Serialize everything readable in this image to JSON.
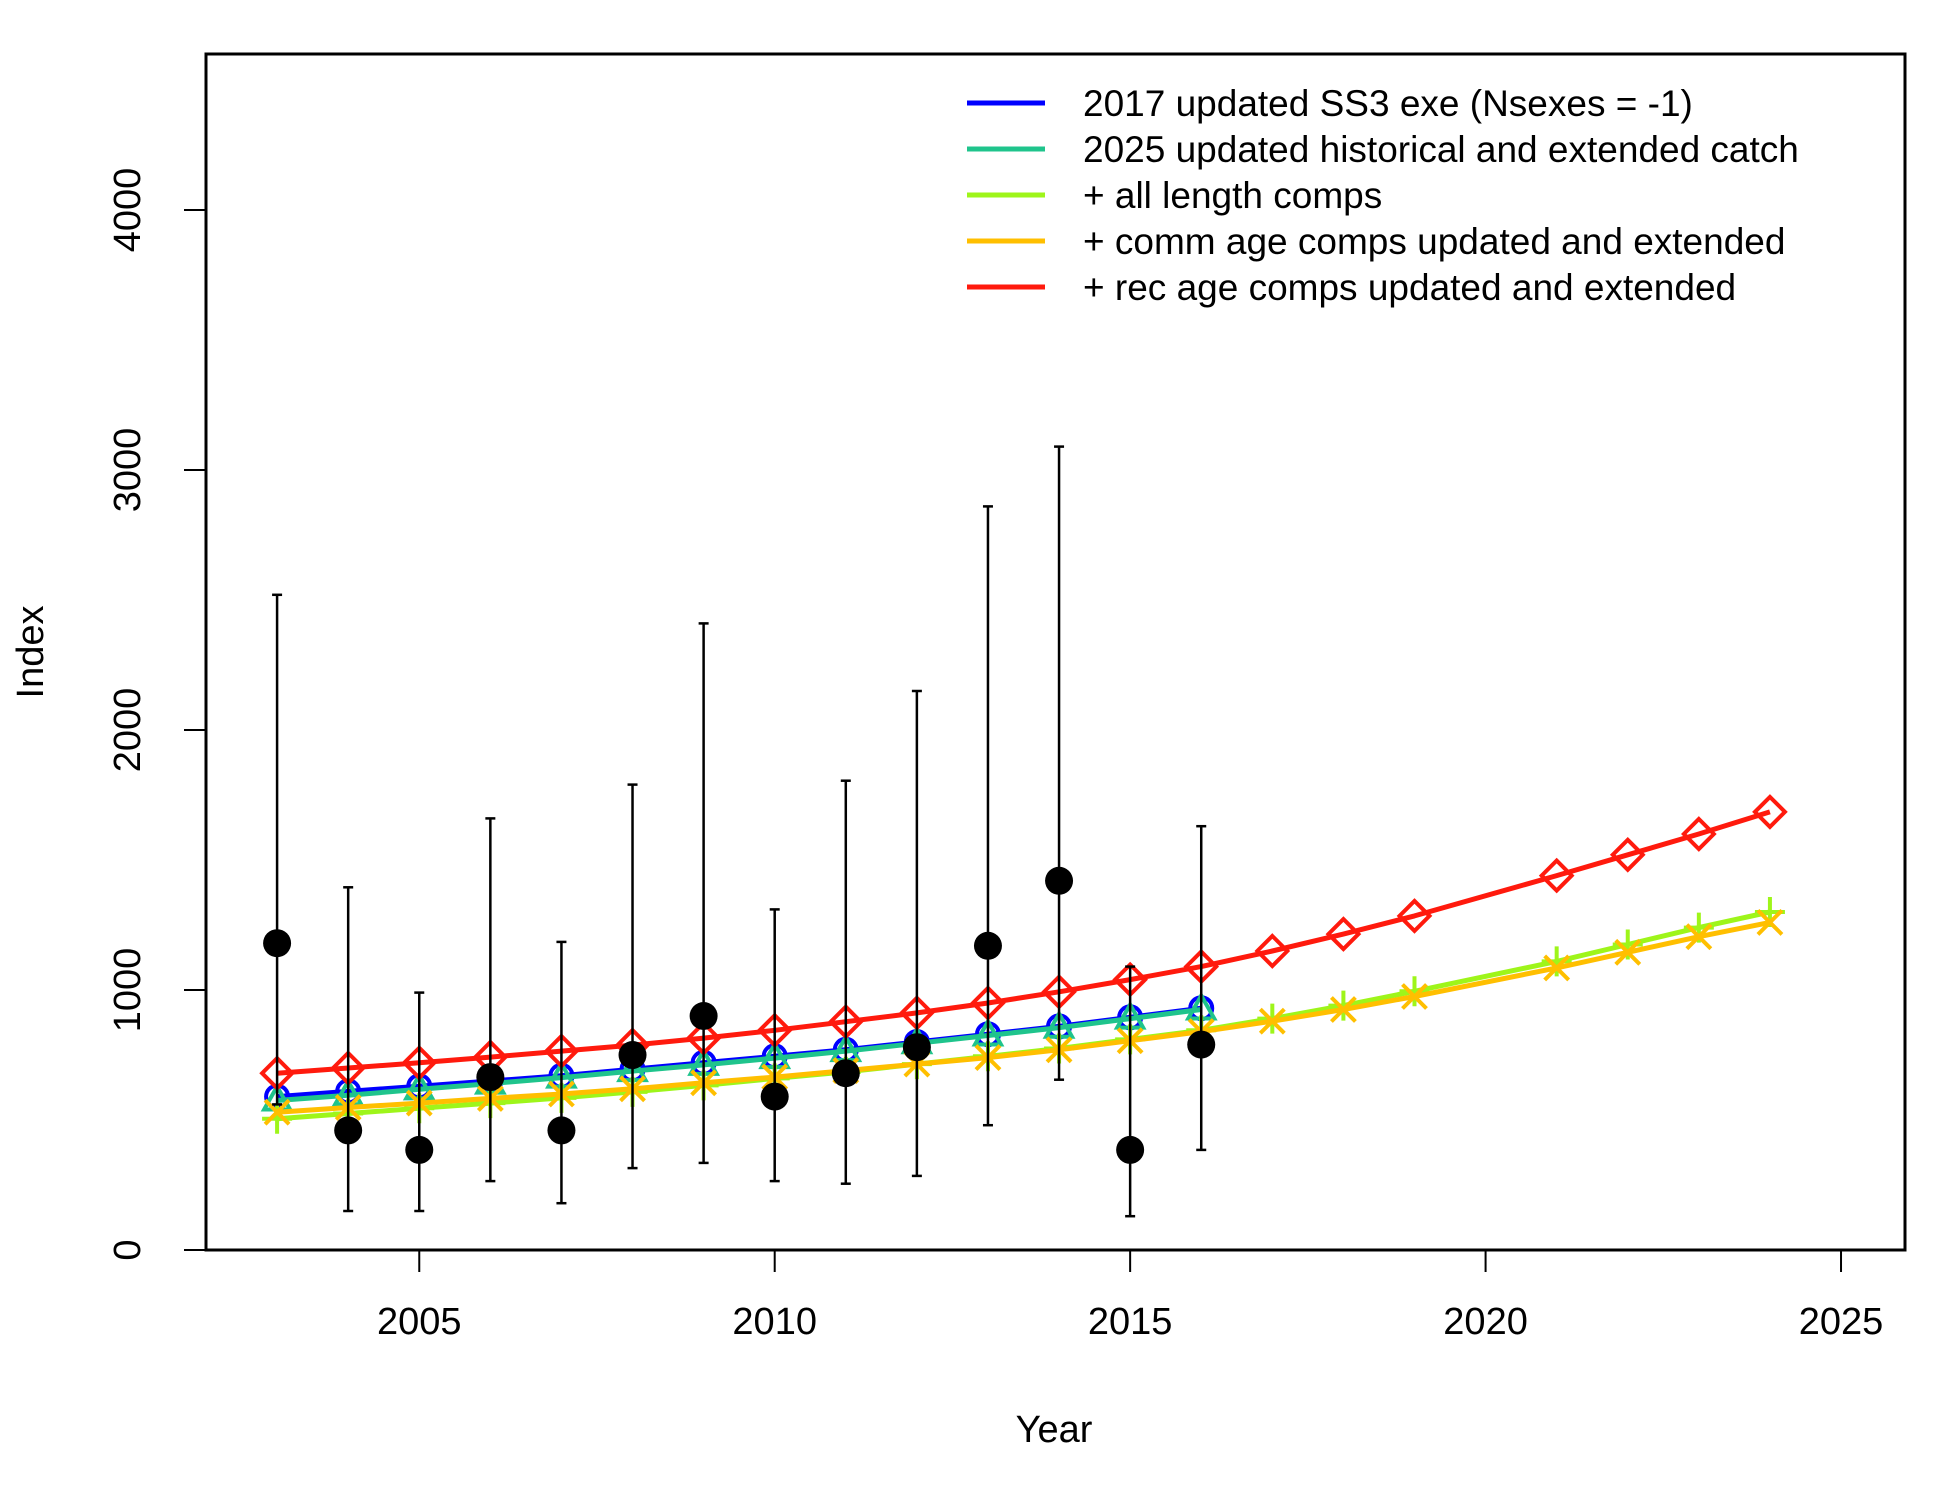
{
  "chart_data": {
    "type": "line",
    "title": "",
    "xlabel": "Year",
    "ylabel": "Index",
    "xlim": [
      2002,
      2025.9
    ],
    "ylim": [
      0,
      4600
    ],
    "x_ticks": [
      2005,
      2010,
      2015,
      2020,
      2025
    ],
    "y_ticks": [
      0,
      1000,
      2000,
      3000,
      4000
    ],
    "grid": false,
    "legend": "top-right",
    "observed": {
      "x": [
        2003,
        2004,
        2005,
        2006,
        2007,
        2008,
        2009,
        2010,
        2011,
        2012,
        2013,
        2014,
        2015,
        2016
      ],
      "y": [
        1180,
        460,
        385,
        665,
        460,
        750,
        900,
        590,
        680,
        780,
        1170,
        1420,
        385,
        790
      ],
      "lower": [
        560,
        150,
        150,
        265,
        180,
        315,
        335,
        265,
        255,
        285,
        480,
        655,
        130,
        385
      ],
      "upper": [
        2520,
        1395,
        990,
        1660,
        1185,
        1790,
        2410,
        1310,
        1805,
        2150,
        2860,
        3090,
        1090,
        1630
      ]
    },
    "series": [
      {
        "name": "2017 updated SS3 exe (Nsexes = -1)",
        "color": "#0000ff",
        "marker": "circle",
        "x": [
          2003,
          2004,
          2005,
          2006,
          2007,
          2008,
          2009,
          2010,
          2011,
          2012,
          2013,
          2014,
          2015,
          2016
        ],
        "y": [
          590,
          610,
          630,
          650,
          670,
          695,
          720,
          745,
          770,
          800,
          830,
          860,
          895,
          930
        ]
      },
      {
        "name": "2025 updated historical and extended catch",
        "color": "#1fc48c",
        "marker": "triangle",
        "x": [
          2003,
          2004,
          2005,
          2006,
          2007,
          2008,
          2009,
          2010,
          2011,
          2012,
          2013,
          2014,
          2015,
          2016
        ],
        "y": [
          575,
          595,
          618,
          640,
          663,
          688,
          712,
          738,
          765,
          795,
          825,
          855,
          890,
          925
        ]
      },
      {
        "name": "+ all length comps",
        "color": "#9ef51a",
        "marker": "plus",
        "x": [
          2003,
          2004,
          2005,
          2006,
          2007,
          2008,
          2009,
          2010,
          2011,
          2012,
          2013,
          2014,
          2015,
          2016,
          2017,
          2018,
          2019,
          2021,
          2022,
          2023,
          2024
        ],
        "y": [
          505,
          525,
          545,
          565,
          585,
          608,
          633,
          660,
          685,
          715,
          745,
          775,
          810,
          845,
          890,
          940,
          995,
          1110,
          1175,
          1240,
          1300
        ]
      },
      {
        "name": "+ comm age comps updated and extended",
        "color": "#ffbf00",
        "marker": "x",
        "x": [
          2003,
          2004,
          2005,
          2006,
          2007,
          2008,
          2009,
          2010,
          2011,
          2012,
          2013,
          2014,
          2015,
          2016,
          2017,
          2018,
          2019,
          2021,
          2022,
          2023,
          2024
        ],
        "y": [
          530,
          548,
          565,
          583,
          600,
          620,
          643,
          665,
          690,
          715,
          740,
          770,
          805,
          840,
          880,
          925,
          975,
          1085,
          1145,
          1205,
          1260
        ]
      },
      {
        "name": "+ rec age comps updated and extended",
        "color": "#ff1a0d",
        "marker": "diamond",
        "x": [
          2003,
          2004,
          2005,
          2006,
          2007,
          2008,
          2009,
          2010,
          2011,
          2012,
          2013,
          2014,
          2015,
          2016,
          2017,
          2018,
          2019,
          2021,
          2022,
          2023,
          2024
        ],
        "y": [
          680,
          700,
          720,
          742,
          765,
          788,
          815,
          845,
          878,
          912,
          950,
          993,
          1040,
          1090,
          1150,
          1215,
          1285,
          1440,
          1520,
          1600,
          1685
        ]
      }
    ]
  }
}
